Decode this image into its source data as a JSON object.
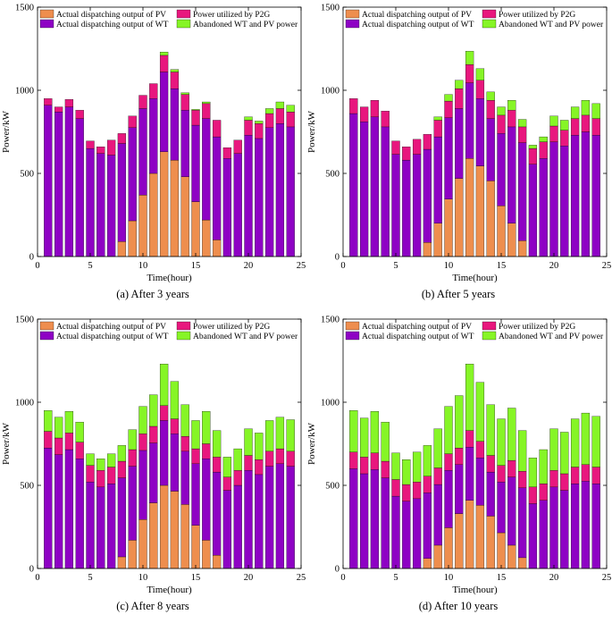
{
  "colors": {
    "pv": "#EE8E4E",
    "wt": "#8E02C4",
    "p2g": "#E8177E",
    "abandoned": "#86F526",
    "axis": "#000000"
  },
  "chart_data": [
    {
      "type": "bar",
      "stacked": true,
      "caption": "(a)  After 3 years",
      "xlabel": "Time(hour)",
      "ylabel": "Power/kW",
      "xlim": [
        0,
        25
      ],
      "ylim": [
        0,
        1500
      ],
      "xticks": [
        "0",
        "5",
        "10",
        "15",
        "20",
        "25"
      ],
      "yticks": [
        "0",
        "500",
        "1000",
        "1500"
      ],
      "legend": [
        "Actual dispatching output of PV",
        "Power utilized by P2G",
        "Actual dispatching output of WT",
        "Abandoned WT and PV power"
      ],
      "x": [
        1,
        2,
        3,
        4,
        5,
        6,
        7,
        8,
        9,
        10,
        11,
        12,
        13,
        14,
        15,
        16,
        17,
        18,
        19,
        20,
        21,
        22,
        23,
        24
      ],
      "series": [
        {
          "name": "Actual dispatching output of PV",
          "values": [
            0,
            0,
            0,
            0,
            0,
            0,
            0,
            90,
            215,
            370,
            500,
            630,
            580,
            480,
            330,
            220,
            100,
            0,
            0,
            0,
            0,
            0,
            0,
            0
          ]
        },
        {
          "name": "Actual dispatching output of WT",
          "values": [
            910,
            870,
            900,
            830,
            650,
            620,
            610,
            590,
            560,
            520,
            450,
            480,
            430,
            400,
            460,
            610,
            620,
            590,
            620,
            730,
            710,
            775,
            800,
            780
          ]
        },
        {
          "name": "Power utilized by P2G",
          "values": [
            40,
            30,
            45,
            50,
            45,
            40,
            90,
            60,
            70,
            80,
            90,
            100,
            100,
            95,
            90,
            90,
            100,
            65,
            80,
            90,
            90,
            85,
            90,
            90
          ]
        },
        {
          "name": "Abandoned WT and PV power",
          "values": [
            0,
            0,
            0,
            0,
            0,
            0,
            0,
            0,
            0,
            0,
            0,
            20,
            15,
            10,
            5,
            10,
            0,
            0,
            0,
            20,
            15,
            30,
            40,
            40
          ]
        }
      ]
    },
    {
      "type": "bar",
      "stacked": true,
      "caption": "(b)  After 5 years",
      "xlabel": "Time(hour)",
      "ylabel": "Power/kW",
      "xlim": [
        0,
        25
      ],
      "ylim": [
        0,
        1500
      ],
      "xticks": [
        "0",
        "5",
        "10",
        "15",
        "20",
        "25"
      ],
      "yticks": [
        "0",
        "500",
        "1000",
        "1500"
      ],
      "legend": [
        "Actual dispatching output of PV",
        "Power utilized by P2G",
        "Actual dispatching output of WT",
        "Abandoned WT and PV power"
      ],
      "x": [
        1,
        2,
        3,
        4,
        5,
        6,
        7,
        8,
        9,
        10,
        11,
        12,
        13,
        14,
        15,
        16,
        17,
        18,
        19,
        20,
        21,
        22,
        23,
        24
      ],
      "series": [
        {
          "name": "Actual dispatching output of PV",
          "values": [
            0,
            0,
            0,
            0,
            0,
            0,
            0,
            85,
            200,
            345,
            470,
            590,
            545,
            455,
            305,
            200,
            95,
            0,
            0,
            0,
            0,
            0,
            0,
            0
          ]
        },
        {
          "name": "Actual dispatching output of WT",
          "values": [
            860,
            810,
            840,
            780,
            615,
            580,
            615,
            560,
            520,
            490,
            420,
            455,
            405,
            375,
            435,
            580,
            590,
            555,
            590,
            690,
            665,
            730,
            750,
            730
          ]
        },
        {
          "name": "Power utilized by P2G",
          "values": [
            90,
            90,
            100,
            95,
            80,
            80,
            90,
            90,
            100,
            100,
            120,
            110,
            110,
            110,
            110,
            100,
            95,
            95,
            100,
            95,
            95,
            100,
            100,
            100
          ]
        },
        {
          "name": "Abandoned WT and PV power",
          "values": [
            0,
            0,
            0,
            0,
            0,
            0,
            0,
            0,
            20,
            40,
            50,
            80,
            70,
            50,
            50,
            60,
            45,
            20,
            30,
            60,
            60,
            70,
            90,
            90
          ]
        }
      ]
    },
    {
      "type": "bar",
      "stacked": true,
      "caption": "(c)  After 8 years",
      "xlabel": "Time(hour)",
      "ylabel": "Power/kW",
      "xlim": [
        0,
        25
      ],
      "ylim": [
        0,
        1500
      ],
      "xticks": [
        "0",
        "5",
        "10",
        "15",
        "20",
        "25"
      ],
      "yticks": [
        "0",
        "500",
        "1000",
        "1500"
      ],
      "legend": [
        "Actual dispatching output of PV",
        "Power utilized by P2G",
        "Actual dispatching output of WT",
        "Abandoned WT and PV power"
      ],
      "x": [
        1,
        2,
        3,
        4,
        5,
        6,
        7,
        8,
        9,
        10,
        11,
        12,
        13,
        14,
        15,
        16,
        17,
        18,
        19,
        20,
        21,
        22,
        23,
        24
      ],
      "series": [
        {
          "name": "Actual dispatching output of PV",
          "values": [
            0,
            0,
            0,
            0,
            0,
            0,
            0,
            70,
            170,
            295,
            395,
            500,
            465,
            385,
            260,
            170,
            80,
            0,
            0,
            0,
            0,
            0,
            0,
            0
          ]
        },
        {
          "name": "Actual dispatching output of WT",
          "values": [
            725,
            685,
            715,
            660,
            520,
            490,
            510,
            475,
            445,
            415,
            360,
            390,
            345,
            320,
            370,
            490,
            500,
            470,
            500,
            590,
            565,
            615,
            630,
            615
          ]
        },
        {
          "name": "Power utilized by P2G",
          "values": [
            100,
            100,
            100,
            100,
            100,
            100,
            100,
            100,
            100,
            100,
            100,
            90,
            90,
            90,
            90,
            90,
            90,
            80,
            90,
            90,
            90,
            90,
            90,
            90
          ]
        },
        {
          "name": "Abandoned WT and PV power",
          "values": [
            125,
            125,
            130,
            120,
            70,
            70,
            80,
            95,
            120,
            165,
            190,
            250,
            225,
            190,
            170,
            195,
            160,
            120,
            130,
            160,
            160,
            185,
            190,
            190
          ]
        }
      ]
    },
    {
      "type": "bar",
      "stacked": true,
      "caption": "(d)  After 10 years",
      "xlabel": "Time(hour)",
      "ylabel": "Power/kW",
      "xlim": [
        0,
        25
      ],
      "ylim": [
        0,
        1500
      ],
      "xticks": [
        "0",
        "5",
        "10",
        "15",
        "20",
        "25"
      ],
      "yticks": [
        "0",
        "500",
        "1000",
        "1500"
      ],
      "legend": [
        "Actual dispatching output of PV",
        "Power utilized by P2G",
        "Actual dispatching output of WT",
        "Abandoned WT and PV power"
      ],
      "x": [
        1,
        2,
        3,
        4,
        5,
        6,
        7,
        8,
        9,
        10,
        11,
        12,
        13,
        14,
        15,
        16,
        17,
        18,
        19,
        20,
        21,
        22,
        23,
        24
      ],
      "series": [
        {
          "name": "Actual dispatching output of PV",
          "values": [
            0,
            0,
            0,
            0,
            0,
            0,
            0,
            60,
            140,
            245,
            330,
            410,
            380,
            315,
            215,
            140,
            65,
            0,
            0,
            0,
            0,
            0,
            0,
            0
          ]
        },
        {
          "name": "Actual dispatching output of WT",
          "values": [
            600,
            570,
            595,
            545,
            435,
            405,
            420,
            395,
            365,
            345,
            295,
            320,
            285,
            265,
            305,
            410,
            420,
            390,
            410,
            490,
            470,
            510,
            525,
            510
          ]
        },
        {
          "name": "Power utilized by P2G",
          "values": [
            100,
            100,
            100,
            100,
            100,
            100,
            100,
            100,
            100,
            100,
            100,
            100,
            100,
            100,
            100,
            100,
            100,
            100,
            100,
            100,
            100,
            100,
            100,
            100
          ]
        },
        {
          "name": "Abandoned WT and PV power",
          "values": [
            250,
            235,
            250,
            235,
            160,
            150,
            180,
            185,
            235,
            285,
            315,
            400,
            355,
            305,
            280,
            315,
            245,
            175,
            205,
            250,
            250,
            290,
            310,
            305
          ]
        }
      ]
    }
  ]
}
